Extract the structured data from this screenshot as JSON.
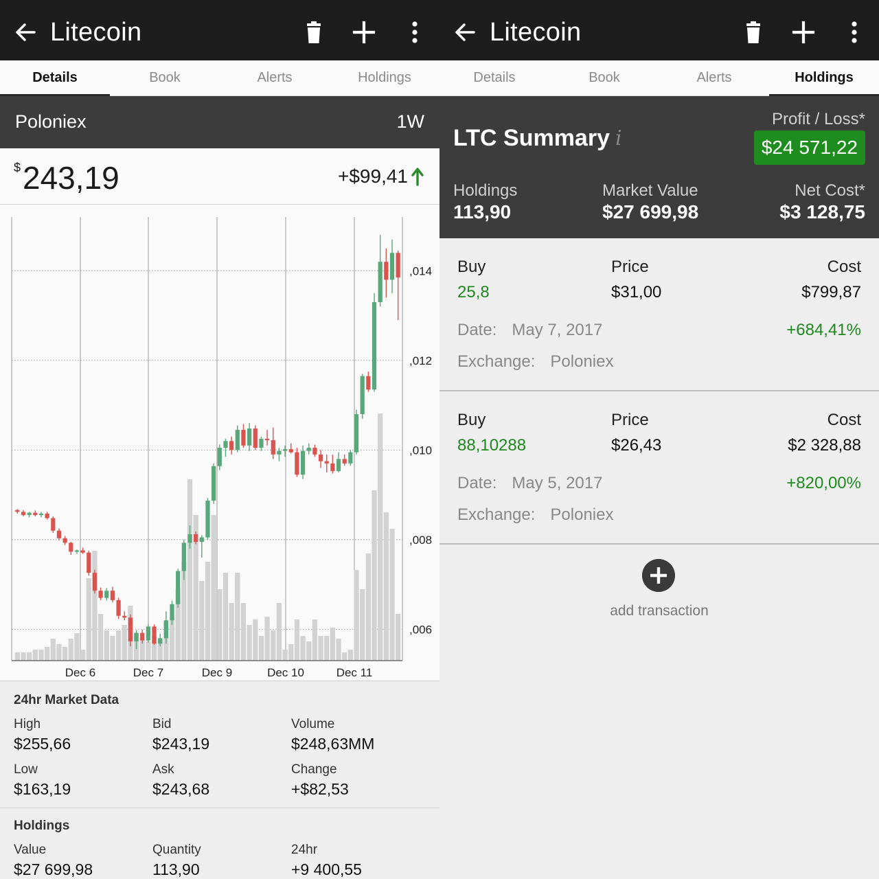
{
  "left": {
    "appbar": {
      "title": "Litecoin",
      "icons": [
        "back-arrow-icon",
        "trash-icon",
        "plus-icon",
        "more-vertical-icon"
      ]
    },
    "tabs": [
      "Details",
      "Book",
      "Alerts",
      "Holdings"
    ],
    "active_tab": "Details",
    "exchange": "Poloniex",
    "timeframe": "1W",
    "price": {
      "currency": "$",
      "value": "243,19",
      "change": "+$99,41"
    },
    "market": {
      "title": "24hr Market Data",
      "items": [
        {
          "label": "High",
          "value": "$255,66"
        },
        {
          "label": "Bid",
          "value": "$243,19"
        },
        {
          "label": "Volume",
          "value": "$248,63MM"
        },
        {
          "label": "Low",
          "value": "$163,19"
        },
        {
          "label": "Ask",
          "value": "$243,68"
        },
        {
          "label": "Change",
          "value": "+$82,53"
        }
      ]
    },
    "holdings": {
      "title": "Holdings",
      "items": [
        {
          "label": "Value",
          "value": "$27 699,98"
        },
        {
          "label": "Quantity",
          "value": "113,90"
        },
        {
          "label": "24hr",
          "value": "+9 400,55"
        }
      ]
    }
  },
  "right": {
    "appbar": {
      "title": "Litecoin"
    },
    "tabs": [
      "Details",
      "Book",
      "Alerts",
      "Holdings"
    ],
    "active_tab": "Holdings",
    "summary": {
      "title": "LTC Summary",
      "info": "i",
      "pl_label": "Profit / Loss*",
      "pl_value": "$24 571,22",
      "stats": [
        {
          "label": "Holdings",
          "value": "113,90"
        },
        {
          "label": "Market Value",
          "value": "$27 699,98"
        },
        {
          "label": "Net Cost*",
          "value": "$3 128,75"
        }
      ]
    },
    "transactions": [
      {
        "type": "Buy",
        "qty": "25,8",
        "price_label": "Price",
        "price": "$31,00",
        "cost_label": "Cost",
        "cost": "$799,87",
        "date_label": "Date:",
        "date": "May 7, 2017",
        "pct": "+684,41%",
        "exchange_label": "Exchange:",
        "exchange": "Poloniex"
      },
      {
        "type": "Buy",
        "qty": "88,10288",
        "price_label": "Price",
        "price": "$26,43",
        "cost_label": "Cost",
        "cost": "$2 328,88",
        "date_label": "Date:",
        "date": "May 5, 2017",
        "pct": "+820,00%",
        "exchange_label": "Exchange:",
        "exchange": "Poloniex"
      }
    ],
    "add_label": "add transaction"
  },
  "colors": {
    "up": "#5aa77c",
    "down": "#d9534f",
    "volume": "#d2d2d2",
    "profit_badge": "#1f8c1f",
    "pct_green": "#1e8a1e"
  },
  "chart_data": {
    "type": "candlestick",
    "x_tick_labels": [
      "Dec 6",
      "Dec 7",
      "Dec 9",
      "Dec 10",
      "Dec 11"
    ],
    "y_tick_labels": [
      ",014",
      ",012",
      ",010",
      ",008",
      ",006"
    ],
    "y_ticks": [
      0.014,
      0.012,
      0.01,
      0.008,
      0.006
    ],
    "ylim": [
      0.0053,
      0.0152
    ],
    "volume_max": 100,
    "candles": [
      [
        0.00866,
        0.00868,
        0.00858,
        0.00862,
        3
      ],
      [
        0.00862,
        0.00866,
        0.00852,
        0.00855,
        3
      ],
      [
        0.00855,
        0.00862,
        0.0085,
        0.0086,
        3
      ],
      [
        0.0086,
        0.00865,
        0.00852,
        0.00855,
        4
      ],
      [
        0.00855,
        0.00862,
        0.0085,
        0.00858,
        4
      ],
      [
        0.00858,
        0.00862,
        0.00845,
        0.00848,
        5
      ],
      [
        0.00848,
        0.00852,
        0.00815,
        0.0082,
        8
      ],
      [
        0.0082,
        0.00825,
        0.00798,
        0.00803,
        6
      ],
      [
        0.00803,
        0.00808,
        0.00788,
        0.00793,
        5
      ],
      [
        0.00793,
        0.00795,
        0.00766,
        0.00773,
        8
      ],
      [
        0.00773,
        0.00778,
        0.00768,
        0.00776,
        10
      ],
      [
        0.00776,
        0.00782,
        0.00768,
        0.00771,
        4
      ],
      [
        0.00771,
        0.00775,
        0.0072,
        0.00726,
        30
      ],
      [
        0.00726,
        0.00733,
        0.0068,
        0.00686,
        40
      ],
      [
        0.00686,
        0.00693,
        0.00665,
        0.0067,
        17
      ],
      [
        0.0067,
        0.00692,
        0.00664,
        0.00686,
        11
      ],
      [
        0.00686,
        0.00695,
        0.0066,
        0.00665,
        9
      ],
      [
        0.00665,
        0.0067,
        0.00623,
        0.0063,
        11
      ],
      [
        0.0063,
        0.0064,
        0.0062,
        0.00626,
        13
      ],
      [
        0.00626,
        0.00633,
        0.00562,
        0.00573,
        20
      ],
      [
        0.00573,
        0.00598,
        0.00556,
        0.00592,
        10
      ],
      [
        0.00592,
        0.00599,
        0.00568,
        0.00575,
        8
      ],
      [
        0.00575,
        0.00612,
        0.0057,
        0.00606,
        7
      ],
      [
        0.00606,
        0.00611,
        0.00565,
        0.00568,
        9
      ],
      [
        0.00568,
        0.0059,
        0.00562,
        0.0058,
        8
      ],
      [
        0.0058,
        0.0064,
        0.00568,
        0.0062,
        14
      ],
      [
        0.0062,
        0.00664,
        0.0061,
        0.00656,
        16
      ],
      [
        0.00656,
        0.00735,
        0.00648,
        0.0073,
        26
      ],
      [
        0.0073,
        0.008,
        0.0071,
        0.00793,
        36
      ],
      [
        0.00793,
        0.00832,
        0.0078,
        0.00812,
        66
      ],
      [
        0.00812,
        0.00818,
        0.0079,
        0.00795,
        53
      ],
      [
        0.00795,
        0.0081,
        0.0076,
        0.00805,
        29
      ],
      [
        0.00805,
        0.00893,
        0.008,
        0.00887,
        36
      ],
      [
        0.00887,
        0.0097,
        0.0088,
        0.00964,
        53
      ],
      [
        0.00964,
        0.01012,
        0.00955,
        0.01005,
        26
      ],
      [
        0.01005,
        0.01025,
        0.00985,
        0.0102,
        32
      ],
      [
        0.0102,
        0.0103,
        0.0099,
        0.01,
        21
      ],
      [
        0.01,
        0.01055,
        0.00995,
        0.01045,
        32
      ],
      [
        0.01045,
        0.01058,
        0.01005,
        0.0101,
        21
      ],
      [
        0.0101,
        0.0106,
        0.00998,
        0.01048,
        13
      ],
      [
        0.01048,
        0.01055,
        0.01,
        0.01005,
        15
      ],
      [
        0.01005,
        0.0103,
        0.00998,
        0.01025,
        9
      ],
      [
        0.01025,
        0.01045,
        0.0101,
        0.01022,
        16
      ],
      [
        0.01022,
        0.0105,
        0.0098,
        0.0099,
        11
      ],
      [
        0.0099,
        0.01005,
        0.00975,
        0.00998,
        21
      ],
      [
        0.00998,
        0.0101,
        0.00985,
        0.01002,
        4
      ],
      [
        0.01002,
        0.01015,
        0.00992,
        0.00995,
        6
      ],
      [
        0.00995,
        0.01005,
        0.0094,
        0.00945,
        15
      ],
      [
        0.00945,
        0.0101,
        0.00935,
        0.00998,
        9
      ],
      [
        0.00998,
        0.01015,
        0.0099,
        0.01005,
        7
      ],
      [
        0.01005,
        0.01012,
        0.00985,
        0.0099,
        15
      ],
      [
        0.0099,
        0.01,
        0.0096,
        0.00975,
        9
      ],
      [
        0.00975,
        0.0099,
        0.0095,
        0.0097,
        9
      ],
      [
        0.0097,
        0.0099,
        0.00948,
        0.00953,
        12
      ],
      [
        0.00953,
        0.00995,
        0.0095,
        0.0098,
        8
      ],
      [
        0.0098,
        0.0099,
        0.00965,
        0.0097,
        3
      ],
      [
        0.0097,
        0.01,
        0.00965,
        0.00995,
        4
      ],
      [
        0.00995,
        0.0109,
        0.0099,
        0.0108,
        33
      ],
      [
        0.0108,
        0.0117,
        0.0107,
        0.01165,
        26
      ],
      [
        0.01165,
        0.01175,
        0.0113,
        0.01135,
        39
      ],
      [
        0.01135,
        0.0135,
        0.0113,
        0.0133,
        62
      ],
      [
        0.0133,
        0.0148,
        0.0132,
        0.0142,
        90
      ],
      [
        0.0142,
        0.0145,
        0.0134,
        0.0138,
        54
      ],
      [
        0.0138,
        0.0147,
        0.0135,
        0.0144,
        48
      ],
      [
        0.0144,
        0.01445,
        0.0129,
        0.01385,
        17
      ]
    ]
  }
}
